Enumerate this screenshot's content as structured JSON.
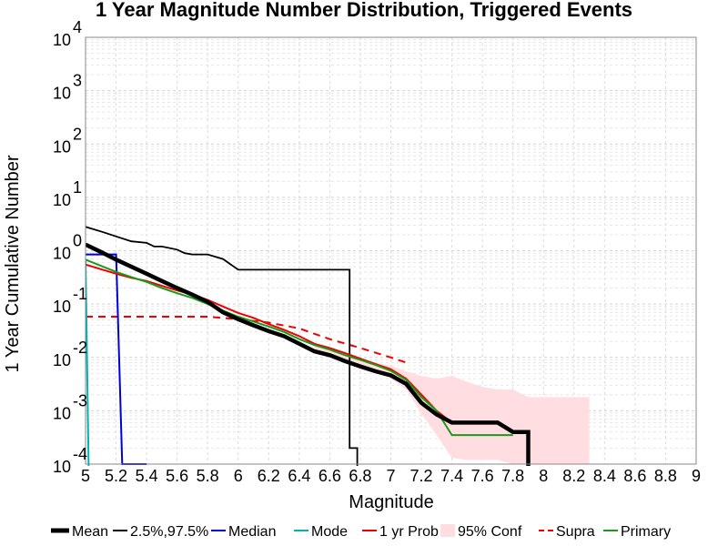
{
  "chart_data": {
    "type": "line",
    "title": "1 Year Magnitude Number Distribution, Triggered Events",
    "xlabel": "Magnitude",
    "ylabel": "1 Year Cumulative Number",
    "x_scale": "linear",
    "y_scale": "log",
    "xlim": [
      5,
      9
    ],
    "ylim": [
      0.0001,
      10000
    ],
    "grid": true,
    "legend_position": "bottom",
    "x_tick_labels": [
      "5",
      "5.2",
      "5.4",
      "5.6",
      "5.8",
      "6",
      "6.2",
      "6.4",
      "6.6",
      "6.8",
      "7",
      "7.2",
      "7.4",
      "7.6",
      "7.8",
      "8",
      "8.2",
      "8.4",
      "8.6",
      "8.8",
      "9"
    ],
    "y_ticks": [
      {
        "base": "10",
        "exp": "-4"
      },
      {
        "base": "10",
        "exp": "-3"
      },
      {
        "base": "10",
        "exp": "-2"
      },
      {
        "base": "10",
        "exp": "-1"
      },
      {
        "base": "10",
        "exp": "0"
      },
      {
        "base": "10",
        "exp": "1"
      },
      {
        "base": "10",
        "exp": "2"
      },
      {
        "base": "10",
        "exp": "3"
      },
      {
        "base": "10",
        "exp": "4"
      }
    ],
    "series": [
      {
        "name": "Mean",
        "color": "#000000",
        "style": "solid",
        "weight": "thick",
        "x": [
          5.0,
          5.1,
          5.2,
          5.3,
          5.4,
          5.5,
          5.6,
          5.7,
          5.8,
          5.9,
          6.0,
          6.1,
          6.2,
          6.3,
          6.4,
          6.5,
          6.6,
          6.7,
          6.8,
          6.9,
          7.0,
          7.1,
          7.2,
          7.3,
          7.4,
          7.5,
          7.6,
          7.7,
          7.8,
          7.9,
          7.9
        ],
        "y": [
          1.3,
          0.95,
          0.68,
          0.5,
          0.37,
          0.27,
          0.2,
          0.15,
          0.11,
          0.07,
          0.052,
          0.04,
          0.031,
          0.025,
          0.018,
          0.013,
          0.011,
          0.0085,
          0.0068,
          0.0055,
          0.0046,
          0.0032,
          0.0014,
          0.00085,
          0.0006,
          0.0006,
          0.0006,
          0.0006,
          0.0004,
          0.0004,
          8e-05
        ]
      },
      {
        "name": "2.5%,97.5%",
        "color": "#000000",
        "style": "solid",
        "weight": "thin",
        "x": [
          5.0,
          5.1,
          5.2,
          5.3,
          5.4,
          5.45,
          5.5,
          5.6,
          5.65,
          5.7,
          5.8,
          5.9,
          6.0,
          6.1,
          6.2,
          6.3,
          6.4,
          6.5,
          6.6,
          6.7,
          6.73,
          6.73,
          6.78,
          6.78
        ],
        "y": [
          2.8,
          2.3,
          1.85,
          1.5,
          1.4,
          1.2,
          1.2,
          1.05,
          0.9,
          0.85,
          0.85,
          0.7,
          0.44,
          0.44,
          0.44,
          0.44,
          0.44,
          0.44,
          0.44,
          0.44,
          0.44,
          0.0002,
          0.0002,
          8e-05
        ]
      },
      {
        "name": "Median",
        "color": "#0000dd",
        "style": "solid",
        "weight": "normal",
        "x": [
          5.0,
          5.2,
          5.24,
          5.4
        ],
        "y": [
          0.85,
          0.85,
          0.0001,
          0.0001
        ]
      },
      {
        "name": "Mode",
        "color": "#00b3b3",
        "style": "solid",
        "weight": "normal",
        "x": [
          5.0,
          5.02
        ],
        "y": [
          0.68,
          8e-05
        ]
      },
      {
        "name": "1 yr Prob",
        "color": "#ee0000",
        "style": "solid",
        "weight": "normal",
        "x": [
          5.0,
          5.1,
          5.2,
          5.3,
          5.4,
          5.5,
          5.6,
          5.7,
          5.8,
          5.9,
          6.0,
          6.1,
          6.2,
          6.3,
          6.4,
          6.5,
          6.6,
          6.7,
          6.8,
          6.9,
          7.0,
          7.1,
          7.2,
          7.3,
          7.4
        ],
        "y": [
          0.55,
          0.45,
          0.37,
          0.31,
          0.27,
          0.22,
          0.18,
          0.15,
          0.12,
          0.09,
          0.068,
          0.055,
          0.042,
          0.033,
          0.025,
          0.018,
          0.015,
          0.012,
          0.0095,
          0.0075,
          0.006,
          0.004,
          0.002,
          0.001,
          0.0006
        ]
      },
      {
        "name": "95% Conf",
        "color": "#ffdde0",
        "style": "band",
        "weight": "normal",
        "x": [
          6.5,
          6.6,
          6.7,
          6.8,
          6.9,
          7.0,
          7.1,
          7.2,
          7.3,
          7.4,
          7.5,
          7.6,
          7.7,
          7.8,
          7.9,
          8.0,
          8.1,
          8.2,
          8.3
        ],
        "upper": [
          0.018,
          0.015,
          0.012,
          0.0095,
          0.008,
          0.007,
          0.0055,
          0.0045,
          0.004,
          0.0045,
          0.0035,
          0.0028,
          0.0025,
          0.0025,
          0.0018,
          0.0018,
          0.0018,
          0.0018,
          0.0018
        ],
        "lower": [
          0.012,
          0.01,
          0.008,
          0.006,
          0.005,
          0.004,
          0.0025,
          0.0009,
          0.00035,
          0.00013,
          0.00012,
          0.00012,
          0.00012,
          0.0001,
          0.0001,
          0.0001,
          0.0001,
          0.0001,
          0.0001
        ]
      },
      {
        "name": "Supra",
        "color": "#ee0000",
        "style": "dashed",
        "weight": "normal",
        "x": [
          5.0,
          5.2,
          5.4,
          5.6,
          5.8,
          6.0,
          6.2,
          6.4,
          6.6,
          6.8,
          7.0,
          7.1
        ],
        "y": [
          0.058,
          0.058,
          0.058,
          0.058,
          0.058,
          0.052,
          0.045,
          0.035,
          0.022,
          0.015,
          0.01,
          0.008
        ]
      },
      {
        "name": "Primary",
        "color": "#1a9a1a",
        "style": "solid",
        "weight": "normal",
        "x": [
          5.0,
          5.1,
          5.2,
          5.3,
          5.4,
          5.5,
          5.6,
          5.7,
          5.8,
          5.9,
          6.0,
          6.1,
          6.2,
          6.3,
          6.4,
          6.5,
          6.6,
          6.7,
          6.8,
          6.9,
          7.0,
          7.1,
          7.2,
          7.3,
          7.4,
          7.5,
          7.6,
          7.7,
          7.8
        ],
        "y": [
          0.68,
          0.52,
          0.4,
          0.32,
          0.26,
          0.2,
          0.16,
          0.13,
          0.1,
          0.075,
          0.058,
          0.047,
          0.038,
          0.03,
          0.022,
          0.017,
          0.014,
          0.011,
          0.009,
          0.0072,
          0.0056,
          0.0038,
          0.0018,
          0.001,
          0.00035,
          0.00035,
          0.00035,
          0.00035,
          0.00035
        ]
      }
    ]
  }
}
